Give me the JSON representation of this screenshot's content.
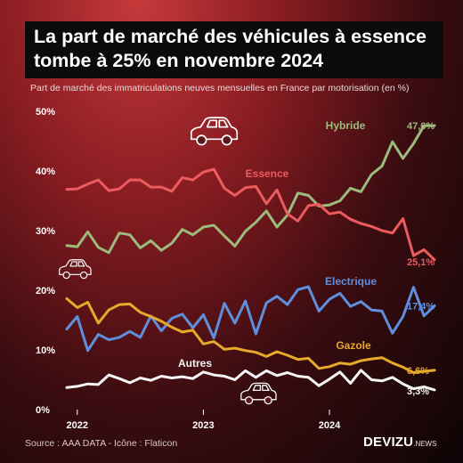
{
  "title": "La part de marché des véhicules à essence tombe à 25% en novembre 2024",
  "subtitle": "Part de marché des immatriculations neuves mensuelles en France par motorisation (en %)",
  "source": "Source : AAA DATA - Icône : Flaticon",
  "brand": {
    "main": "DEVIZU",
    "suffix": ".NEWS"
  },
  "icons": [
    "car-icon",
    "car-icon",
    "car-icon"
  ],
  "chart_data": {
    "type": "line",
    "x": [
      "2021-12",
      "2022-01",
      "2022-02",
      "2022-03",
      "2022-04",
      "2022-05",
      "2022-06",
      "2022-07",
      "2022-08",
      "2022-09",
      "2022-10",
      "2022-11",
      "2022-12",
      "2023-01",
      "2023-02",
      "2023-03",
      "2023-04",
      "2023-05",
      "2023-06",
      "2023-07",
      "2023-08",
      "2023-09",
      "2023-10",
      "2023-11",
      "2023-12",
      "2024-01",
      "2024-02",
      "2024-03",
      "2024-04",
      "2024-05",
      "2024-06",
      "2024-07",
      "2024-08",
      "2024-09",
      "2024-10",
      "2024-11"
    ],
    "x_tick_labels": [
      "2022",
      "2023",
      "2024"
    ],
    "y_tick_labels": [
      "0%",
      "10%",
      "20%",
      "30%",
      "40%",
      "50%"
    ],
    "ylim": [
      0,
      50
    ],
    "grid": false,
    "series": [
      {
        "name": "Hybride",
        "color": "#9dbb7c",
        "end_label": "47,6%",
        "values": [
          27.5,
          27.3,
          29.8,
          27.2,
          26.3,
          29.6,
          29.3,
          27.1,
          28.3,
          26.7,
          27.9,
          30.2,
          29.3,
          30.6,
          30.9,
          29.1,
          27.4,
          29.9,
          31.4,
          33.3,
          30.6,
          32.6,
          36.3,
          35.9,
          34.1,
          34.3,
          35.0,
          37.1,
          36.5,
          39.4,
          40.8,
          44.9,
          42.1,
          44.6,
          47.6,
          47.6
        ]
      },
      {
        "name": "Essence",
        "color": "#ec5b5e",
        "end_label": "25,1%",
        "values": [
          36.9,
          37.0,
          37.8,
          38.5,
          36.7,
          37.0,
          38.5,
          38.5,
          37.3,
          37.3,
          36.6,
          38.9,
          38.5,
          39.8,
          40.3,
          37.1,
          35.9,
          37.2,
          37.4,
          34.5,
          36.8,
          32.8,
          31.6,
          34.2,
          34.4,
          32.8,
          33.1,
          31.9,
          31.2,
          30.7,
          30.0,
          29.6,
          32.0,
          25.8,
          26.8,
          25.1
        ]
      },
      {
        "name": "Electrique",
        "color": "#5f8fdc",
        "end_label": "17,4%",
        "values": [
          13.5,
          15.6,
          9.9,
          12.6,
          11.7,
          12.1,
          13.1,
          12.1,
          15.7,
          13.2,
          15.3,
          16.0,
          13.7,
          15.9,
          12.0,
          17.8,
          14.5,
          18.2,
          12.7,
          17.9,
          19.0,
          17.6,
          20.1,
          20.6,
          16.5,
          18.5,
          19.5,
          17.3,
          18.1,
          16.7,
          16.5,
          12.8,
          15.6,
          20.5,
          15.7,
          17.4
        ]
      },
      {
        "name": "Gazole",
        "color": "#e6a92b",
        "end_label": "6,6%",
        "values": [
          18.6,
          17.1,
          18.0,
          14.5,
          16.7,
          17.6,
          17.7,
          16.3,
          15.6,
          14.8,
          13.8,
          13.0,
          13.3,
          11.0,
          11.4,
          10.1,
          10.3,
          9.9,
          9.6,
          8.9,
          9.7,
          9.1,
          8.4,
          8.6,
          6.9,
          7.2,
          7.8,
          7.6,
          8.2,
          8.5,
          8.7,
          7.8,
          7.1,
          6.2,
          6.4,
          6.6
        ]
      },
      {
        "name": "Autres",
        "color": "#f4f4f4",
        "end_label": "3,3%",
        "values": [
          3.7,
          3.9,
          4.3,
          4.2,
          5.8,
          5.2,
          4.5,
          5.3,
          4.9,
          5.6,
          5.3,
          5.5,
          5.2,
          6.3,
          5.8,
          5.6,
          5.0,
          6.5,
          5.4,
          6.5,
          5.7,
          6.2,
          5.6,
          5.4,
          4.0,
          5.1,
          6.3,
          4.4,
          6.6,
          5.0,
          4.8,
          5.4,
          4.3,
          3.5,
          3.8,
          3.3
        ]
      }
    ]
  }
}
